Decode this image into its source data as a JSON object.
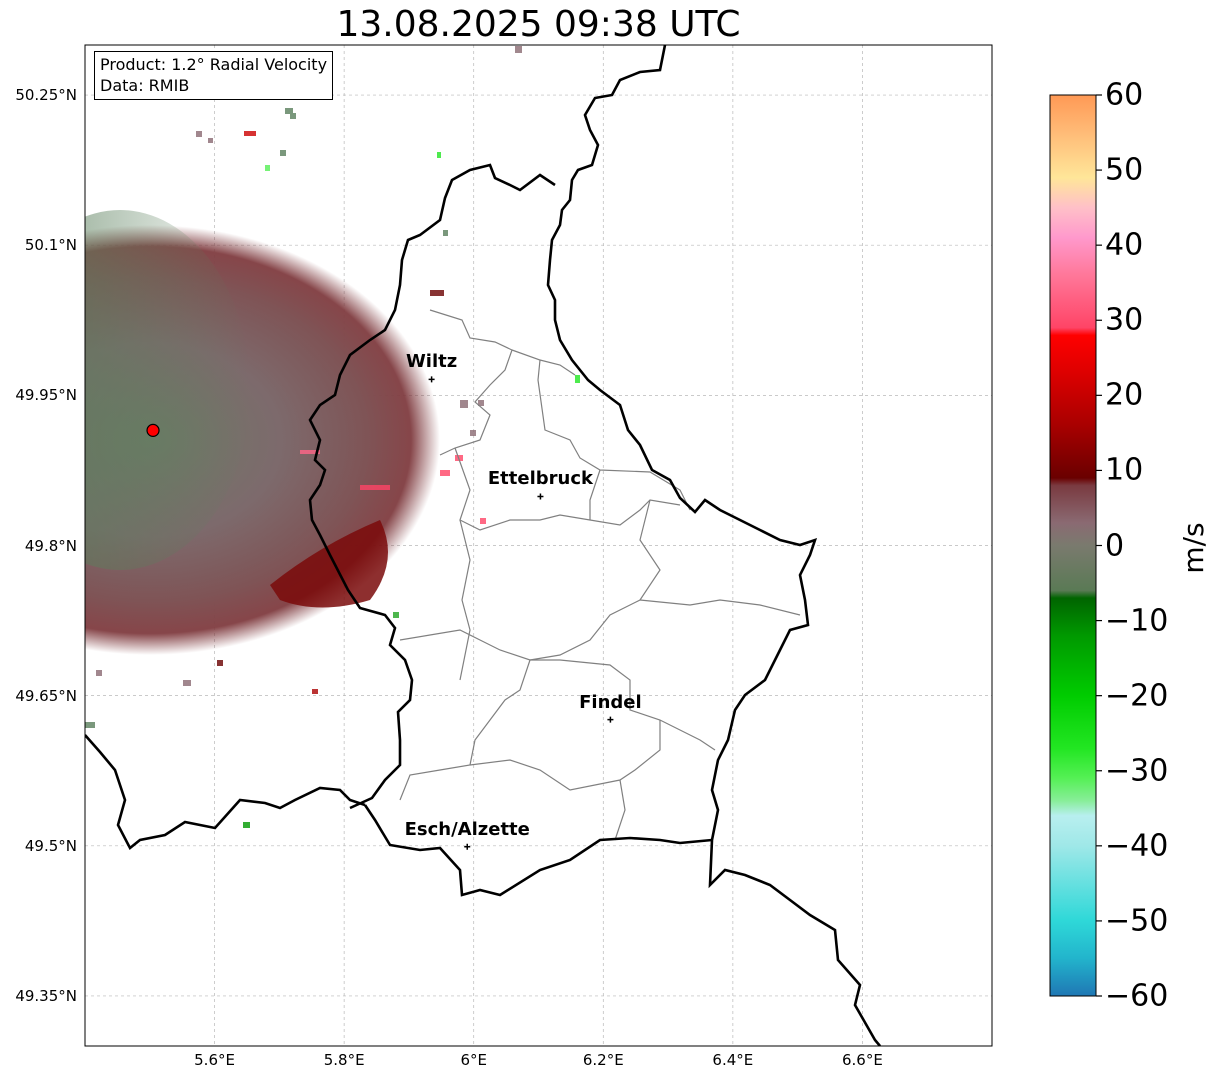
{
  "title": "13.08.2025 09:38 UTC",
  "info": {
    "product": "Product: 1.2° Radial Velocity",
    "data": "Data: RMIB"
  },
  "axes": {
    "lat_labels": [
      "50.25°N",
      "50.1°N",
      "49.95°N",
      "49.8°N",
      "49.65°N",
      "49.5°N",
      "49.35°N"
    ],
    "lat_values": [
      50.25,
      50.1,
      49.95,
      49.8,
      49.65,
      49.5,
      49.35
    ],
    "lon_labels": [
      "5.6°E",
      "5.8°E",
      "6°E",
      "6.2°E",
      "6.4°E",
      "6.6°E"
    ],
    "lon_values": [
      5.6,
      5.8,
      6.0,
      6.2,
      6.4,
      6.6
    ],
    "lon_range": [
      5.4,
      6.8
    ],
    "lat_range": [
      49.3,
      50.3
    ]
  },
  "cities": [
    {
      "name": "Wiltz",
      "lon": 5.935,
      "lat": 49.966
    },
    {
      "name": "Ettelbruck",
      "lon": 6.103,
      "lat": 49.849
    },
    {
      "name": "Findel",
      "lon": 6.211,
      "lat": 49.626
    },
    {
      "name": "Esch/Alzette",
      "lon": 5.99,
      "lat": 49.499
    }
  ],
  "radar_site": {
    "lon": 5.505,
    "lat": 49.915,
    "color": "#ff0000"
  },
  "colorbar": {
    "label": "m/s",
    "tick_labels": [
      "60",
      "50",
      "40",
      "30",
      "20",
      "10",
      "0",
      "−10",
      "−20",
      "−30",
      "−40",
      "−50",
      "−60"
    ],
    "tick_values": [
      60,
      50,
      40,
      30,
      20,
      10,
      0,
      -10,
      -20,
      -30,
      -40,
      -50,
      -60
    ],
    "range": [
      -60,
      60
    ],
    "stops": [
      {
        "v": -60,
        "c": "#1f77b4"
      },
      {
        "v": -55,
        "c": "#22b4cc"
      },
      {
        "v": -50,
        "c": "#2ed8d8"
      },
      {
        "v": -40,
        "c": "#9fe8e8"
      },
      {
        "v": -36,
        "c": "#b8efef"
      },
      {
        "v": -34,
        "c": "#88ee99"
      },
      {
        "v": -31,
        "c": "#55f055"
      },
      {
        "v": -27,
        "c": "#22e622"
      },
      {
        "v": -20,
        "c": "#00cc00"
      },
      {
        "v": -12,
        "c": "#009900"
      },
      {
        "v": -7,
        "c": "#006400"
      },
      {
        "v": -6,
        "c": "#5a7a55"
      },
      {
        "v": 0,
        "c": "#7a7a6e"
      },
      {
        "v": 3,
        "c": "#8a6a72"
      },
      {
        "v": 8,
        "c": "#7a3a40"
      },
      {
        "v": 9,
        "c": "#6a0000"
      },
      {
        "v": 16,
        "c": "#a80000"
      },
      {
        "v": 23,
        "c": "#dd0000"
      },
      {
        "v": 28,
        "c": "#ff0000"
      },
      {
        "v": 29,
        "c": "#ff4466"
      },
      {
        "v": 36,
        "c": "#ff7799"
      },
      {
        "v": 41,
        "c": "#ff99cc"
      },
      {
        "v": 45,
        "c": "#ffc0c8"
      },
      {
        "v": 49,
        "c": "#ffe699"
      },
      {
        "v": 55,
        "c": "#ffbb77"
      },
      {
        "v": 60,
        "c": "#ff9955"
      }
    ]
  }
}
